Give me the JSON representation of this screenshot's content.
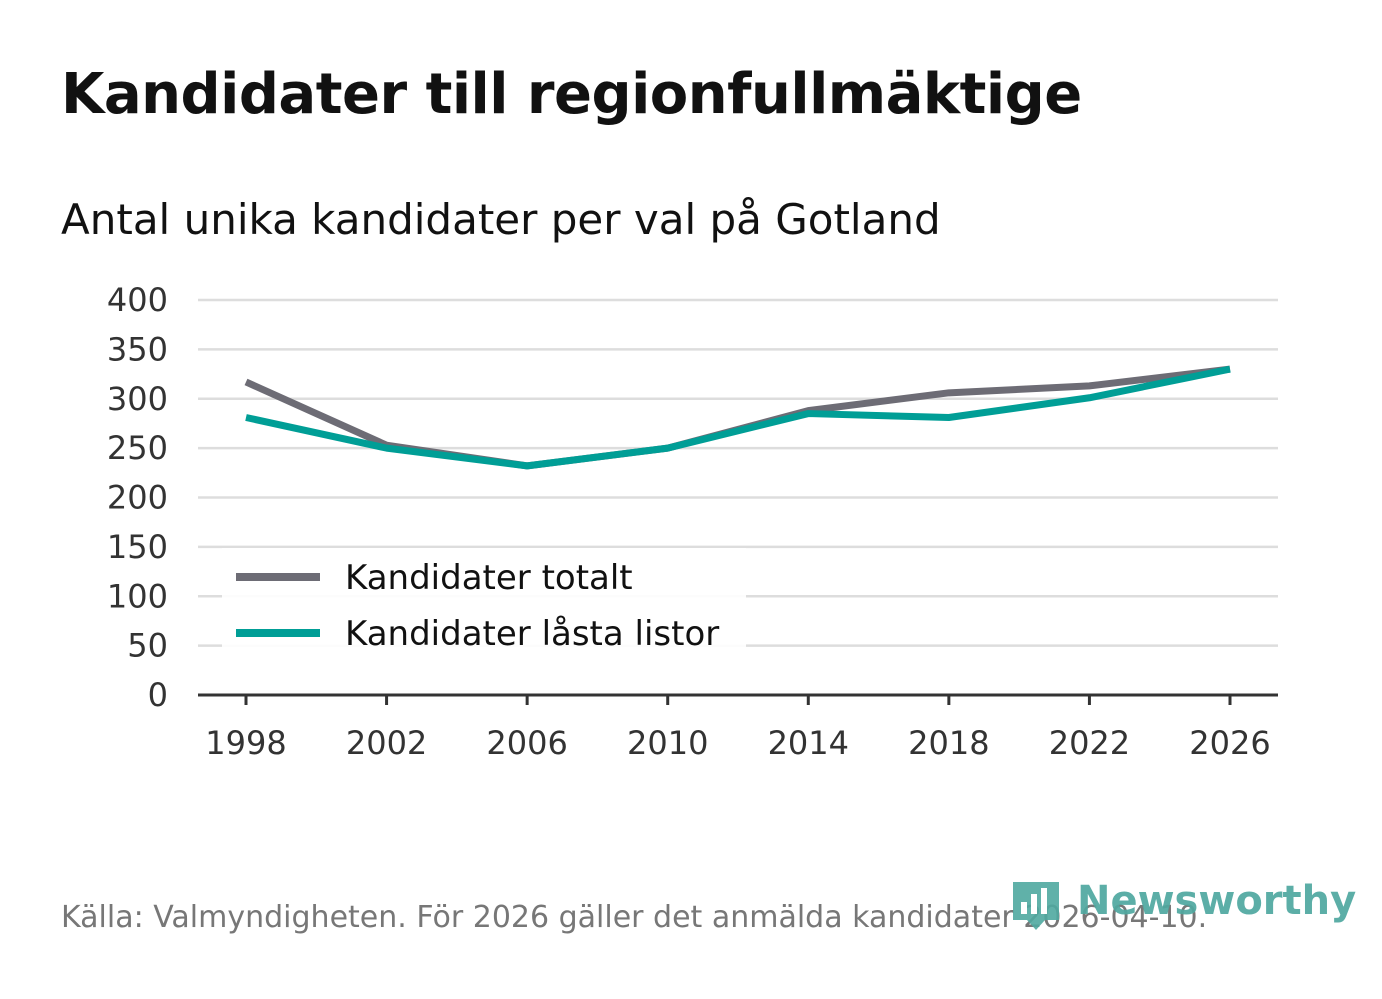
{
  "title": "Kandidater till regionfullmäktige",
  "subtitle": "Antal unika kandidater per val på Gotland",
  "footer": "Källa: Valmyndigheten. För 2026 gäller det anmälda kandidater 2026-04-10.",
  "logo": {
    "text": "Newsworthy",
    "icon": "bar-chart-icon",
    "color": "#4fa8a0"
  },
  "chart_data": {
    "type": "line",
    "title": "Kandidater till regionfullmäktige",
    "subtitle": "Antal unika kandidater per val på Gotland",
    "xlabel": "",
    "ylabel": "",
    "x": [
      1998,
      2002,
      2006,
      2010,
      2014,
      2018,
      2022,
      2026
    ],
    "x_ticks": [
      "1998",
      "2002",
      "2006",
      "2010",
      "2014",
      "2018",
      "2022",
      "2026"
    ],
    "y_ticks": [
      "0",
      "50",
      "100",
      "150",
      "200",
      "250",
      "300",
      "350",
      "400"
    ],
    "ylim": [
      0,
      400
    ],
    "grid": true,
    "legend_position": "bottom-left",
    "series": [
      {
        "name": "Kandidater totalt",
        "color": "#6d6c75",
        "values": [
          317,
          253,
          232,
          250,
          288,
          306,
          313,
          330
        ]
      },
      {
        "name": "Kandidater låsta listor",
        "color": "#009e96",
        "values": [
          281,
          250,
          232,
          250,
          285,
          281,
          301,
          330
        ]
      }
    ]
  }
}
